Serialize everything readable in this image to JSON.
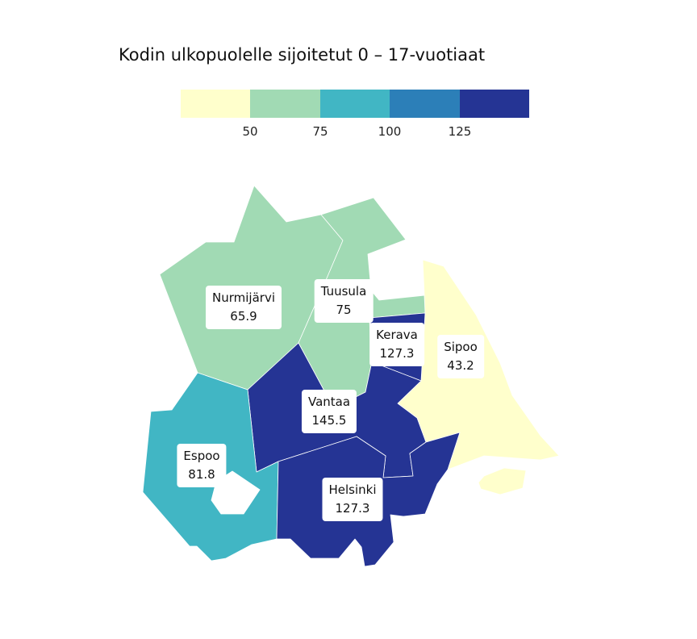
{
  "title": "Kodin ulkopuolelle sijoitetut 0 – 17-vuotiaat",
  "legend": {
    "colors": [
      "#ffffcc",
      "#a1dab4",
      "#41b6c4",
      "#2c7fb8",
      "#253494"
    ],
    "ticks": [
      "50",
      "75",
      "100",
      "125"
    ]
  },
  "municipalities": [
    {
      "name": "Nurmijärvi",
      "value": "65.9",
      "color": "#a1dab4"
    },
    {
      "name": "Tuusula",
      "value": "75",
      "color": "#a1dab4"
    },
    {
      "name": "Kerava",
      "value": "127.3",
      "color": "#253494"
    },
    {
      "name": "Sipoo",
      "value": "43.2",
      "color": "#ffffcc"
    },
    {
      "name": "Vantaa",
      "value": "145.5",
      "color": "#253494"
    },
    {
      "name": "Espoo",
      "value": "81.8",
      "color": "#41b6c4"
    },
    {
      "name": "Helsinki",
      "value": "127.3",
      "color": "#253494"
    }
  ]
}
